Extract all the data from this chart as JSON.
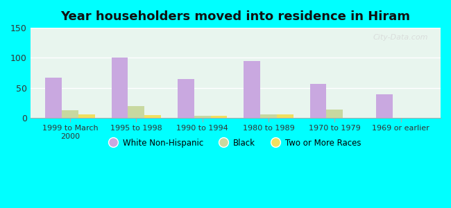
{
  "title": "Year householders moved into residence in Hiram",
  "categories": [
    "1999 to March\n2000",
    "1995 to 1998",
    "1990 to 1994",
    "1980 to 1989",
    "1970 to 1979",
    "1969 or earlier"
  ],
  "series": {
    "White Non-Hispanic": [
      67,
      100,
      65,
      95,
      56,
      39
    ],
    "Black": [
      13,
      20,
      3,
      6,
      14,
      0
    ],
    "Two or More Races": [
      6,
      5,
      3,
      6,
      0,
      0
    ]
  },
  "colors": {
    "White Non-Hispanic": "#c9a8e0",
    "Black": "#c8d8a0",
    "Two or More Races": "#f0e060"
  },
  "ylim": [
    0,
    150
  ],
  "yticks": [
    0,
    50,
    100,
    150
  ],
  "background_color": "#00ffff",
  "watermark": "City-Data.com",
  "bar_width": 0.25
}
